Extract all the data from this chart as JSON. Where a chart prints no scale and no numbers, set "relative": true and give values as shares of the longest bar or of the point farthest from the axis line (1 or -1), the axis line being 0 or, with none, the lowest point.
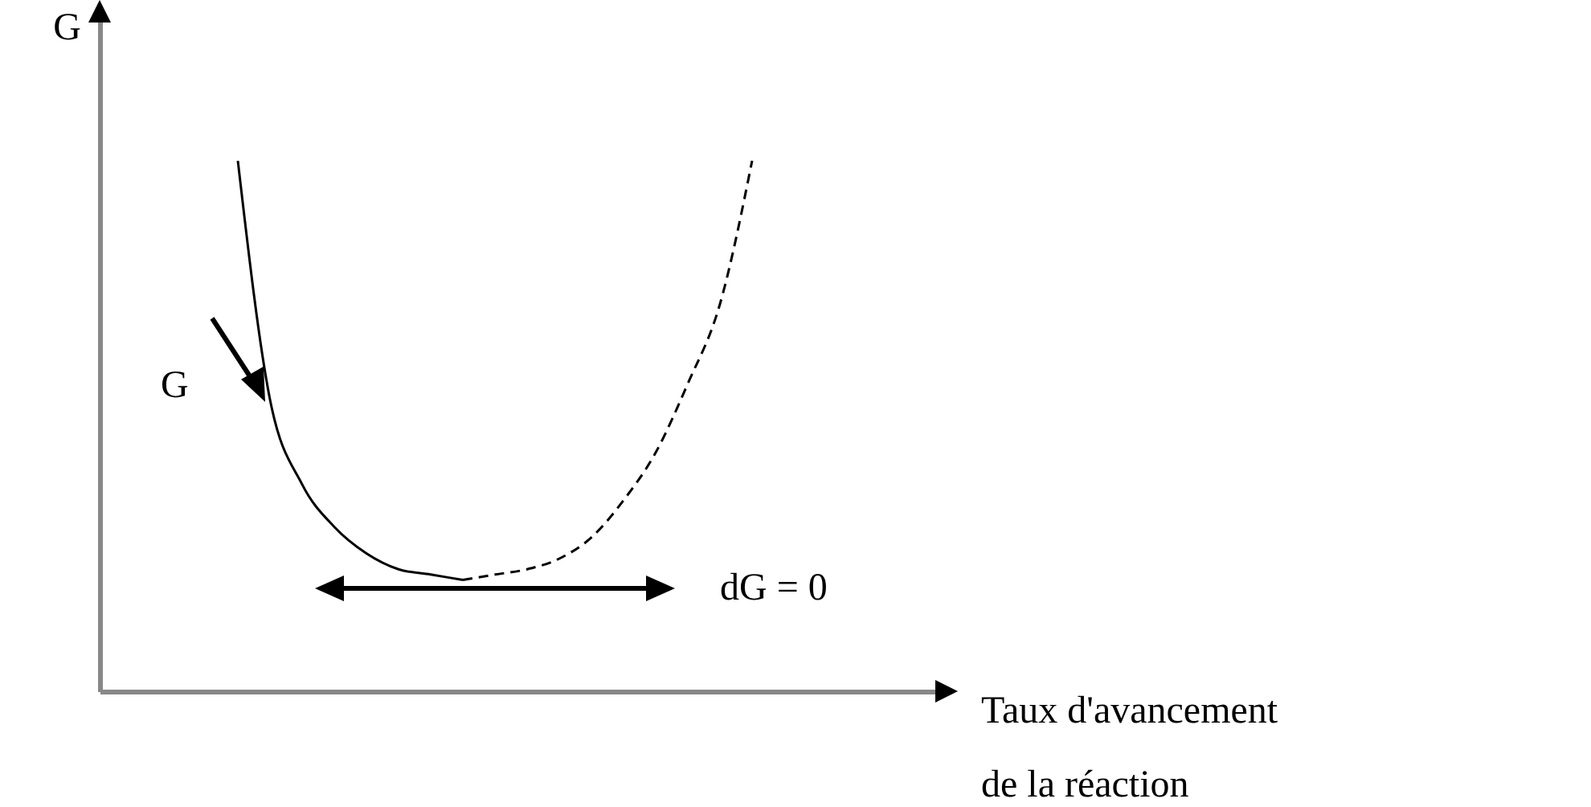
{
  "chart_data": {
    "type": "line",
    "relative": true,
    "ylabel": "G",
    "xlabel": "Taux d'avancement\nde la réaction",
    "categories": [
      null,
      null,
      null,
      null,
      null,
      null,
      null,
      null,
      null,
      null,
      null,
      null,
      null,
      null,
      null,
      null,
      null,
      null,
      null,
      null,
      null,
      null,
      null,
      null,
      null,
      null,
      null,
      null
    ],
    "series": [
      {
        "color": "#000000",
        "line_style": "solid",
        "values": [
          null,
          null,
          null,
          null,
          null,
          1.0,
          0.55,
          0.39,
          0.31,
          0.26,
          0.23,
          0.22,
          0.21,
          null,
          null,
          null,
          null,
          null,
          null,
          null,
          null,
          null,
          null,
          null,
          null,
          null,
          null,
          null
        ]
      },
      {
        "color": "#000000",
        "line_style": "dashed",
        "values": [
          null,
          null,
          null,
          null,
          null,
          null,
          null,
          null,
          null,
          null,
          null,
          null,
          0.21,
          0.22,
          0.23,
          0.25,
          0.29,
          0.36,
          0.45,
          0.58,
          0.73,
          1.0,
          null,
          null,
          null,
          null,
          null,
          null
        ]
      }
    ],
    "annotations": [
      "G",
      "dG = 0"
    ]
  }
}
